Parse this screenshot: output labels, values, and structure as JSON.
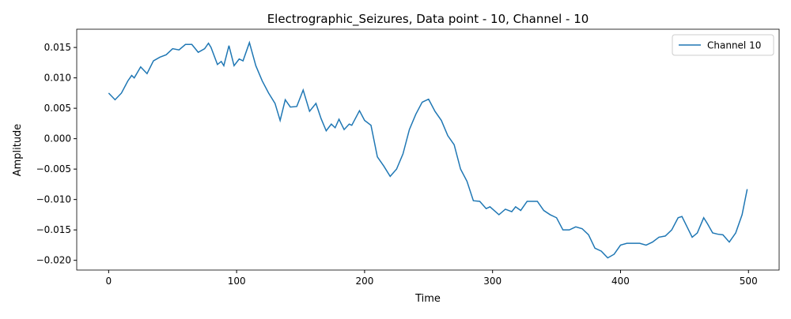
{
  "chart_data": {
    "type": "line",
    "title": "Electrographic_Seizures, Data point - 10, Channel - 10",
    "x_label": "Time",
    "y_label": "Amplitude",
    "x": [
      0,
      5,
      10,
      15,
      18,
      20,
      25,
      30,
      35,
      40,
      45,
      50,
      55,
      60,
      65,
      70,
      75,
      78,
      80,
      85,
      88,
      90,
      94,
      98,
      102,
      105,
      110,
      115,
      120,
      125,
      130,
      134,
      138,
      142,
      147,
      152,
      157,
      162,
      166,
      170,
      174,
      177,
      180,
      184,
      188,
      190,
      196,
      200,
      205,
      210,
      215,
      220,
      225,
      230,
      235,
      240,
      245,
      250,
      255,
      260,
      265,
      270,
      275,
      280,
      285,
      290,
      295,
      298,
      305,
      310,
      315,
      318,
      322,
      327,
      335,
      340,
      345,
      350,
      355,
      360,
      365,
      370,
      375,
      380,
      385,
      390,
      395,
      400,
      405,
      410,
      415,
      420,
      425,
      430,
      435,
      440,
      445,
      448,
      452,
      456,
      460,
      465,
      468,
      472,
      476,
      480,
      485,
      490,
      495,
      499
    ],
    "series": [
      {
        "name": "Channel 10",
        "color": "#1f77b4",
        "values": [
          0.0075,
          0.0064,
          0.0075,
          0.0095,
          0.0104,
          0.01,
          0.0118,
          0.0107,
          0.0128,
          0.0134,
          0.0138,
          0.0148,
          0.0146,
          0.0155,
          0.0155,
          0.0142,
          0.0148,
          0.0157,
          0.015,
          0.0122,
          0.0127,
          0.012,
          0.0153,
          0.012,
          0.0131,
          0.0128,
          0.0158,
          0.012,
          0.0095,
          0.0075,
          0.0058,
          0.003,
          0.0064,
          0.0052,
          0.0053,
          0.008,
          0.0045,
          0.0058,
          0.0033,
          0.0013,
          0.0024,
          0.0018,
          0.0032,
          0.0015,
          0.0024,
          0.0022,
          0.0046,
          0.003,
          0.0022,
          -0.003,
          -0.0045,
          -0.0062,
          -0.005,
          -0.0025,
          0.0015,
          0.004,
          0.006,
          0.0065,
          0.0045,
          0.003,
          0.0005,
          -0.001,
          -0.005,
          -0.007,
          -0.0102,
          -0.0103,
          -0.0115,
          -0.0112,
          -0.0125,
          -0.0116,
          -0.012,
          -0.0112,
          -0.0118,
          -0.0103,
          -0.0103,
          -0.0118,
          -0.0125,
          -0.013,
          -0.015,
          -0.015,
          -0.0145,
          -0.0148,
          -0.0158,
          -0.018,
          -0.0185,
          -0.0196,
          -0.019,
          -0.0175,
          -0.0172,
          -0.0172,
          -0.0172,
          -0.0175,
          -0.017,
          -0.0162,
          -0.016,
          -0.015,
          -0.013,
          -0.0128,
          -0.0145,
          -0.0162,
          -0.0155,
          -0.013,
          -0.014,
          -0.0155,
          -0.0157,
          -0.0158,
          -0.017,
          -0.0155,
          -0.0125,
          -0.0083
        ]
      }
    ],
    "xlim": [
      -24.95,
      523.95
    ],
    "xticks": [
      0,
      100,
      200,
      300,
      400,
      500
    ],
    "ylim": [
      -0.0216,
      0.018
    ],
    "yticks": [
      {
        "value": -0.02,
        "label": "−0.020"
      },
      {
        "value": -0.015,
        "label": "−0.015"
      },
      {
        "value": -0.01,
        "label": "−0.010"
      },
      {
        "value": -0.005,
        "label": "−0.005"
      },
      {
        "value": 0,
        "label": "0.000"
      },
      {
        "value": 0.005,
        "label": "0.005"
      },
      {
        "value": 0.01,
        "label": "0.010"
      },
      {
        "value": 0.015,
        "label": "0.015"
      }
    ],
    "legend": "upper right"
  }
}
